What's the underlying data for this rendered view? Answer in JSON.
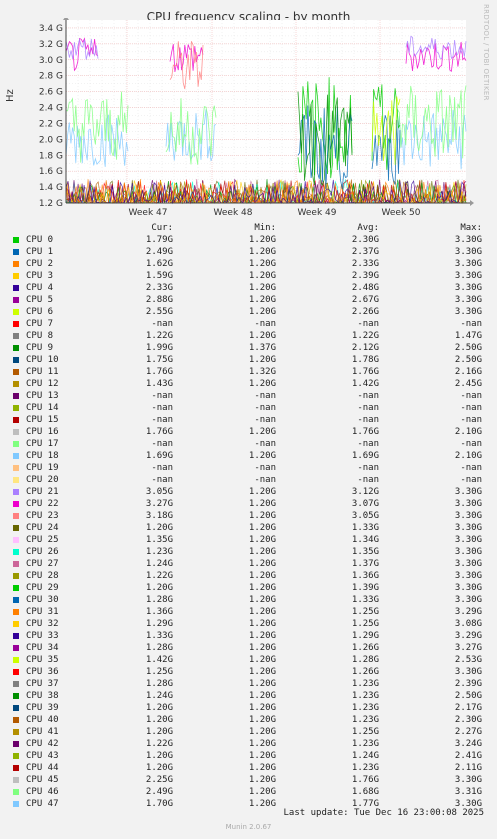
{
  "side_label": "RRDTOOL / TOBI OETIKER",
  "footer": {
    "last_update": "Last update: Tue Dec 16 23:00:08 2025",
    "munin": "Munin 2.0.67"
  },
  "legend_header": {
    "cur": "Cur:",
    "min": "Min:",
    "avg": "Avg:",
    "max": "Max:"
  },
  "legend": [
    {
      "name": "CPU 0",
      "color": "#00cc00",
      "cur": "1.79G",
      "min": "1.20G",
      "avg": "2.30G",
      "max": "3.30G"
    },
    {
      "name": "CPU 1",
      "color": "#0066b3",
      "cur": "2.49G",
      "min": "1.20G",
      "avg": "2.37G",
      "max": "3.30G"
    },
    {
      "name": "CPU 2",
      "color": "#ff8000",
      "cur": "1.62G",
      "min": "1.20G",
      "avg": "2.33G",
      "max": "3.30G"
    },
    {
      "name": "CPU 3",
      "color": "#ffcc00",
      "cur": "1.59G",
      "min": "1.20G",
      "avg": "2.39G",
      "max": "3.30G"
    },
    {
      "name": "CPU 4",
      "color": "#330099",
      "cur": "2.33G",
      "min": "1.20G",
      "avg": "2.48G",
      "max": "3.30G"
    },
    {
      "name": "CPU 5",
      "color": "#990099",
      "cur": "2.88G",
      "min": "1.20G",
      "avg": "2.67G",
      "max": "3.30G"
    },
    {
      "name": "CPU 6",
      "color": "#ccff00",
      "cur": "2.55G",
      "min": "1.20G",
      "avg": "2.26G",
      "max": "3.30G"
    },
    {
      "name": "CPU 7",
      "color": "#ff0000",
      "cur": "-nan",
      "min": "-nan",
      "avg": "-nan",
      "max": "-nan"
    },
    {
      "name": "CPU 8",
      "color": "#808080",
      "cur": "1.22G",
      "min": "1.20G",
      "avg": "1.22G",
      "max": "1.47G"
    },
    {
      "name": "CPU 9",
      "color": "#008f00",
      "cur": "1.99G",
      "min": "1.37G",
      "avg": "2.12G",
      "max": "2.50G"
    },
    {
      "name": "CPU 10",
      "color": "#00487d",
      "cur": "1.75G",
      "min": "1.20G",
      "avg": "1.78G",
      "max": "2.50G"
    },
    {
      "name": "CPU 11",
      "color": "#b35a00",
      "cur": "1.76G",
      "min": "1.32G",
      "avg": "1.76G",
      "max": "2.16G"
    },
    {
      "name": "CPU 12",
      "color": "#b38f00",
      "cur": "1.43G",
      "min": "1.20G",
      "avg": "1.42G",
      "max": "2.45G"
    },
    {
      "name": "CPU 13",
      "color": "#6b006b",
      "cur": "-nan",
      "min": "-nan",
      "avg": "-nan",
      "max": "-nan"
    },
    {
      "name": "CPU 14",
      "color": "#8fb300",
      "cur": "-nan",
      "min": "-nan",
      "avg": "-nan",
      "max": "-nan"
    },
    {
      "name": "CPU 15",
      "color": "#b30000",
      "cur": "-nan",
      "min": "-nan",
      "avg": "-nan",
      "max": "-nan"
    },
    {
      "name": "CPU 16",
      "color": "#bebebe",
      "cur": "1.76G",
      "min": "1.20G",
      "avg": "1.76G",
      "max": "2.10G"
    },
    {
      "name": "CPU 17",
      "color": "#80ff80",
      "cur": "-nan",
      "min": "-nan",
      "avg": "-nan",
      "max": "-nan"
    },
    {
      "name": "CPU 18",
      "color": "#80c9ff",
      "cur": "1.69G",
      "min": "1.20G",
      "avg": "1.69G",
      "max": "2.10G"
    },
    {
      "name": "CPU 19",
      "color": "#ffc080",
      "cur": "-nan",
      "min": "-nan",
      "avg": "-nan",
      "max": "-nan"
    },
    {
      "name": "CPU 20",
      "color": "#ffe680",
      "cur": "-nan",
      "min": "-nan",
      "avg": "-nan",
      "max": "-nan"
    },
    {
      "name": "CPU 21",
      "color": "#aa80ff",
      "cur": "3.05G",
      "min": "1.20G",
      "avg": "3.12G",
      "max": "3.30G"
    },
    {
      "name": "CPU 22",
      "color": "#ee00cc",
      "cur": "3.27G",
      "min": "1.20G",
      "avg": "3.07G",
      "max": "3.30G"
    },
    {
      "name": "CPU 23",
      "color": "#ff8080",
      "cur": "3.18G",
      "min": "1.20G",
      "avg": "3.05G",
      "max": "3.30G"
    },
    {
      "name": "CPU 24",
      "color": "#666600",
      "cur": "1.20G",
      "min": "1.20G",
      "avg": "1.33G",
      "max": "3.30G"
    },
    {
      "name": "CPU 25",
      "color": "#ffbfff",
      "cur": "1.35G",
      "min": "1.20G",
      "avg": "1.34G",
      "max": "3.30G"
    },
    {
      "name": "CPU 26",
      "color": "#00ffcc",
      "cur": "1.23G",
      "min": "1.20G",
      "avg": "1.35G",
      "max": "3.30G"
    },
    {
      "name": "CPU 27",
      "color": "#cc6699",
      "cur": "1.24G",
      "min": "1.20G",
      "avg": "1.37G",
      "max": "3.30G"
    },
    {
      "name": "CPU 28",
      "color": "#999900",
      "cur": "1.22G",
      "min": "1.20G",
      "avg": "1.36G",
      "max": "3.30G"
    },
    {
      "name": "CPU 29",
      "color": "#00cc00",
      "cur": "1.20G",
      "min": "1.20G",
      "avg": "1.39G",
      "max": "3.30G"
    },
    {
      "name": "CPU 30",
      "color": "#0066b3",
      "cur": "1.28G",
      "min": "1.20G",
      "avg": "1.33G",
      "max": "3.30G"
    },
    {
      "name": "CPU 31",
      "color": "#ff8000",
      "cur": "1.36G",
      "min": "1.20G",
      "avg": "1.25G",
      "max": "3.29G"
    },
    {
      "name": "CPU 32",
      "color": "#ffcc00",
      "cur": "1.29G",
      "min": "1.20G",
      "avg": "1.25G",
      "max": "3.08G"
    },
    {
      "name": "CPU 33",
      "color": "#330099",
      "cur": "1.33G",
      "min": "1.20G",
      "avg": "1.29G",
      "max": "3.29G"
    },
    {
      "name": "CPU 34",
      "color": "#990099",
      "cur": "1.28G",
      "min": "1.20G",
      "avg": "1.26G",
      "max": "3.27G"
    },
    {
      "name": "CPU 35",
      "color": "#ccff00",
      "cur": "1.42G",
      "min": "1.20G",
      "avg": "1.28G",
      "max": "2.53G"
    },
    {
      "name": "CPU 36",
      "color": "#ff0000",
      "cur": "1.25G",
      "min": "1.20G",
      "avg": "1.26G",
      "max": "3.30G"
    },
    {
      "name": "CPU 37",
      "color": "#808080",
      "cur": "1.28G",
      "min": "1.20G",
      "avg": "1.23G",
      "max": "2.39G"
    },
    {
      "name": "CPU 38",
      "color": "#008f00",
      "cur": "1.24G",
      "min": "1.20G",
      "avg": "1.23G",
      "max": "2.50G"
    },
    {
      "name": "CPU 39",
      "color": "#00487d",
      "cur": "1.20G",
      "min": "1.20G",
      "avg": "1.23G",
      "max": "2.17G"
    },
    {
      "name": "CPU 40",
      "color": "#b35a00",
      "cur": "1.20G",
      "min": "1.20G",
      "avg": "1.23G",
      "max": "2.30G"
    },
    {
      "name": "CPU 41",
      "color": "#b38f00",
      "cur": "1.20G",
      "min": "1.20G",
      "avg": "1.25G",
      "max": "2.27G"
    },
    {
      "name": "CPU 42",
      "color": "#6b006b",
      "cur": "1.22G",
      "min": "1.20G",
      "avg": "1.23G",
      "max": "3.24G"
    },
    {
      "name": "CPU 43",
      "color": "#8fb300",
      "cur": "1.20G",
      "min": "1.20G",
      "avg": "1.24G",
      "max": "2.41G"
    },
    {
      "name": "CPU 44",
      "color": "#b30000",
      "cur": "1.20G",
      "min": "1.20G",
      "avg": "1.23G",
      "max": "2.11G"
    },
    {
      "name": "CPU 45",
      "color": "#bebebe",
      "cur": "2.25G",
      "min": "1.20G",
      "avg": "1.76G",
      "max": "3.30G"
    },
    {
      "name": "CPU 46",
      "color": "#80ff80",
      "cur": "2.49G",
      "min": "1.20G",
      "avg": "1.68G",
      "max": "3.31G"
    },
    {
      "name": "CPU 47",
      "color": "#80c9ff",
      "cur": "1.70G",
      "min": "1.20G",
      "avg": "1.77G",
      "max": "3.30G"
    }
  ],
  "chart_data": {
    "type": "line",
    "title": "CPU frequency scaling - by month",
    "ylabel": "Hz",
    "xlabel": "",
    "ylim": [
      1.2,
      3.5
    ],
    "y_unit": "G",
    "yticks": [
      "1.2 G",
      "1.4 G",
      "1.6 G",
      "1.8 G",
      "2.0 G",
      "2.2 G",
      "2.4 G",
      "2.6 G",
      "2.8 G",
      "3.0 G",
      "3.2 G",
      "3.4 G"
    ],
    "x_ticks": [
      "Week 47",
      "Week 48",
      "Week 49",
      "Week 50"
    ],
    "grid": true,
    "series": [
      {
        "name": "CPU 22",
        "color": "#ee00cc",
        "shape": "Max/avg near 3.30G/3.07G, visible in the Week 46-47 and Week 50-51 phases"
      },
      {
        "name": "CPU 0",
        "color": "#00cc00",
        "shape": "Avg 2.30G with strong spikes during Week 49"
      },
      {
        "name": "CPU 18",
        "color": "#80c9ff",
        "shape": "Avg 1.69G, oscillating band around 1.6-2.2G"
      }
    ]
  }
}
